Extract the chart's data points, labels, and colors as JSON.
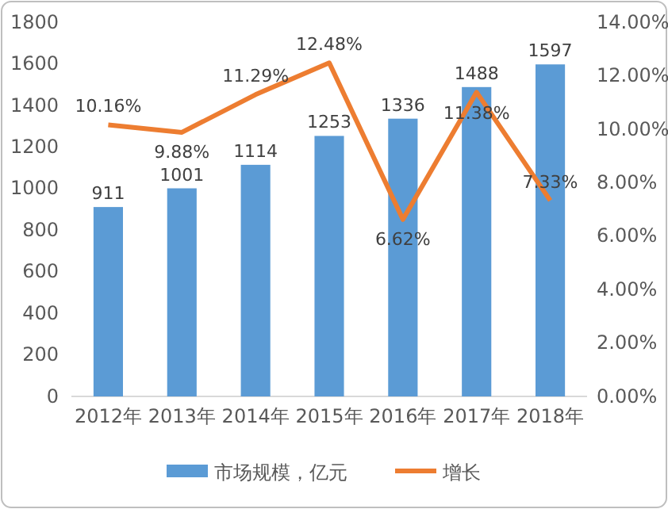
{
  "chart_data": {
    "type": "bar",
    "categories": [
      "2012年",
      "2013年",
      "2014年",
      "2015年",
      "2016年",
      "2017年",
      "2018年"
    ],
    "series": [
      {
        "name": "市场规模，亿元",
        "color": "#5b9bd5",
        "values": [
          911,
          1001,
          1114,
          1253,
          1336,
          1488,
          1597
        ],
        "value_labels": [
          "911",
          "1001",
          "1114",
          "1253",
          "1336",
          "1488",
          "1597"
        ]
      },
      {
        "name": "增长",
        "type": "line",
        "axis": "y2",
        "color": "#ed7d31",
        "values": [
          10.16,
          9.88,
          11.29,
          12.48,
          6.62,
          11.38,
          7.33
        ],
        "value_labels": [
          "10.16%",
          "9.88%",
          "11.29%",
          "12.48%",
          "6.62%",
          "11.38%",
          "7.33%"
        ]
      }
    ],
    "ylim": [
      0,
      1800
    ],
    "yticks": [
      0,
      200,
      400,
      600,
      800,
      1000,
      1200,
      1400,
      1600,
      1800
    ],
    "y2lim": [
      0,
      14
    ],
    "y2ticks": [
      {
        "value": 0,
        "label": "0.00%"
      },
      {
        "value": 2,
        "label": "2.00%"
      },
      {
        "value": 4,
        "label": "4.00%"
      },
      {
        "value": 6,
        "label": "6.00%"
      },
      {
        "value": 8,
        "label": "8.00%"
      },
      {
        "value": 10,
        "label": "10.00%"
      },
      {
        "value": 12,
        "label": "12.00%"
      },
      {
        "value": 14,
        "label": "14.00%"
      }
    ],
    "legend": "bottom",
    "marker": "none",
    "line_style": "solid",
    "grid": false
  }
}
